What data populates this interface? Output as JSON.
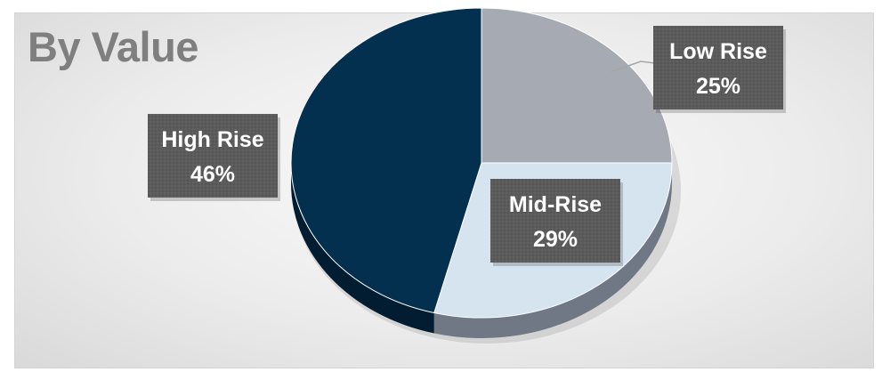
{
  "chart_data": {
    "type": "pie",
    "title": "By Value",
    "categories": [
      "Low Rise",
      "Mid-Rise",
      "High Rise"
    ],
    "values": [
      25,
      29,
      46
    ],
    "value_suffix": "%",
    "colors": [
      "#a6abb3",
      "#d6e4f0",
      "#04304f"
    ],
    "side_colors": [
      "#7c8189",
      "#6f7884",
      "#021d32"
    ],
    "label_box_color": "#595959",
    "start_angle_deg": 0,
    "direction": "clockwise",
    "style": "3d",
    "legend": "none"
  }
}
